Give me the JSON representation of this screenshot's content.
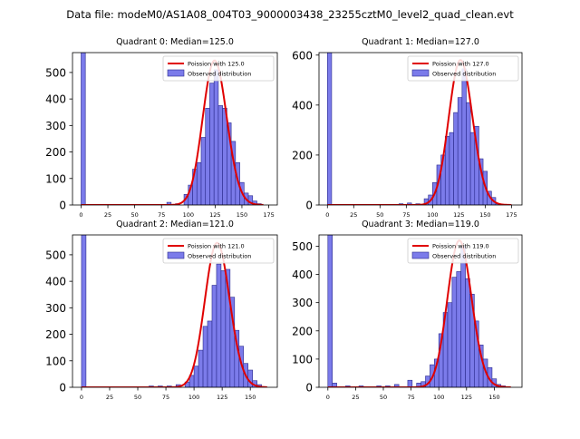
{
  "figure": {
    "suptitle": "Data file: modeM0/AS1A08_004T03_9000003438_23255cztM0_level2_quad_clean.evt"
  },
  "colors": {
    "bar_fill": "#7b7bea",
    "bar_edge": "#2a2a8c",
    "poisson_line": "#e00000"
  },
  "chart_data": [
    {
      "type": "bar",
      "title": "Quadrant 0: Median=125.0",
      "legend": [
        "Poission with 125.0",
        "Observed distribution"
      ],
      "legend_location": "top-right",
      "xlim": [
        -8,
        183
      ],
      "ylim": [
        0,
        575
      ],
      "xticks": [
        0,
        25,
        50,
        75,
        100,
        125,
        150,
        175
      ],
      "yticks": [
        0,
        100,
        200,
        300,
        400,
        500
      ],
      "bin_width": 4,
      "bars": [
        [
          0,
          575
        ],
        [
          80,
          10
        ],
        [
          88,
          5
        ],
        [
          96,
          40
        ],
        [
          100,
          75
        ],
        [
          104,
          135
        ],
        [
          108,
          160
        ],
        [
          112,
          255
        ],
        [
          116,
          365
        ],
        [
          120,
          460
        ],
        [
          124,
          510
        ],
        [
          128,
          375
        ],
        [
          132,
          365
        ],
        [
          136,
          310
        ],
        [
          140,
          240
        ],
        [
          144,
          160
        ],
        [
          148,
          85
        ],
        [
          152,
          45
        ],
        [
          156,
          35
        ],
        [
          160,
          15
        ],
        [
          164,
          5
        ]
      ],
      "poisson_mean": 125.0,
      "poisson_peak": 545,
      "poisson_range": [
        0,
        170
      ]
    },
    {
      "type": "bar",
      "title": "Quadrant 1: Median=127.0",
      "legend": [
        "Poission with 127.0",
        "Observed distribution"
      ],
      "legend_location": "top-right",
      "xlim": [
        -8,
        185
      ],
      "ylim": [
        0,
        610
      ],
      "xticks": [
        0,
        25,
        50,
        75,
        100,
        125,
        150,
        175
      ],
      "yticks": [
        0,
        200,
        400,
        600
      ],
      "bin_width": 4,
      "bars": [
        [
          0,
          610
        ],
        [
          68,
          5
        ],
        [
          76,
          8
        ],
        [
          84,
          5
        ],
        [
          92,
          25
        ],
        [
          96,
          40
        ],
        [
          100,
          90
        ],
        [
          104,
          160
        ],
        [
          108,
          200
        ],
        [
          112,
          275
        ],
        [
          116,
          290
        ],
        [
          120,
          370
        ],
        [
          124,
          430
        ],
        [
          128,
          545
        ],
        [
          132,
          410
        ],
        [
          136,
          290
        ],
        [
          140,
          315
        ],
        [
          144,
          185
        ],
        [
          148,
          135
        ],
        [
          152,
          55
        ],
        [
          156,
          30
        ],
        [
          160,
          5
        ]
      ],
      "poisson_mean": 127.0,
      "poisson_peak": 580,
      "poisson_range": [
        0,
        175
      ]
    },
    {
      "type": "bar",
      "title": "Quadrant 2: Median=121.0",
      "legend": [
        "Poission with 121.0",
        "Observed distribution"
      ],
      "legend_location": "top-right",
      "xlim": [
        -8,
        174
      ],
      "ylim": [
        0,
        575
      ],
      "xticks": [
        0,
        25,
        50,
        75,
        100,
        125,
        150
      ],
      "yticks": [
        0,
        100,
        200,
        300,
        400,
        500
      ],
      "bin_width": 4,
      "bars": [
        [
          0,
          575
        ],
        [
          60,
          5
        ],
        [
          68,
          5
        ],
        [
          76,
          5
        ],
        [
          84,
          10
        ],
        [
          92,
          20
        ],
        [
          96,
          45
        ],
        [
          100,
          80
        ],
        [
          104,
          140
        ],
        [
          108,
          230
        ],
        [
          112,
          250
        ],
        [
          116,
          385
        ],
        [
          120,
          465
        ],
        [
          124,
          440
        ],
        [
          128,
          445
        ],
        [
          132,
          340
        ],
        [
          136,
          215
        ],
        [
          140,
          155
        ],
        [
          144,
          90
        ],
        [
          148,
          65
        ],
        [
          152,
          25
        ],
        [
          156,
          10
        ]
      ],
      "poisson_mean": 121.0,
      "poisson_peak": 545,
      "poisson_range": [
        0,
        165
      ]
    },
    {
      "type": "bar",
      "title": "Quadrant 3: Median=119.0",
      "legend": [
        "Poission with 119.0",
        "Observed distribution"
      ],
      "legend_location": "top-right",
      "xlim": [
        -8,
        175
      ],
      "ylim": [
        0,
        540
      ],
      "xticks": [
        0,
        25,
        50,
        75,
        100,
        125,
        150
      ],
      "yticks": [
        0,
        100,
        200,
        300,
        400,
        500
      ],
      "bin_width": 4,
      "bars": [
        [
          0,
          540
        ],
        [
          4,
          15
        ],
        [
          16,
          5
        ],
        [
          28,
          5
        ],
        [
          44,
          5
        ],
        [
          52,
          5
        ],
        [
          60,
          10
        ],
        [
          72,
          25
        ],
        [
          80,
          15
        ],
        [
          84,
          20
        ],
        [
          88,
          40
        ],
        [
          92,
          80
        ],
        [
          96,
          100
        ],
        [
          100,
          190
        ],
        [
          104,
          265
        ],
        [
          108,
          300
        ],
        [
          112,
          390
        ],
        [
          116,
          410
        ],
        [
          120,
          500
        ],
        [
          124,
          385
        ],
        [
          128,
          330
        ],
        [
          132,
          235
        ],
        [
          136,
          150
        ],
        [
          140,
          100
        ],
        [
          144,
          70
        ],
        [
          148,
          30
        ],
        [
          152,
          10
        ],
        [
          156,
          5
        ]
      ],
      "poisson_mean": 119.0,
      "poisson_peak": 520,
      "poisson_range": [
        0,
        165
      ]
    }
  ]
}
